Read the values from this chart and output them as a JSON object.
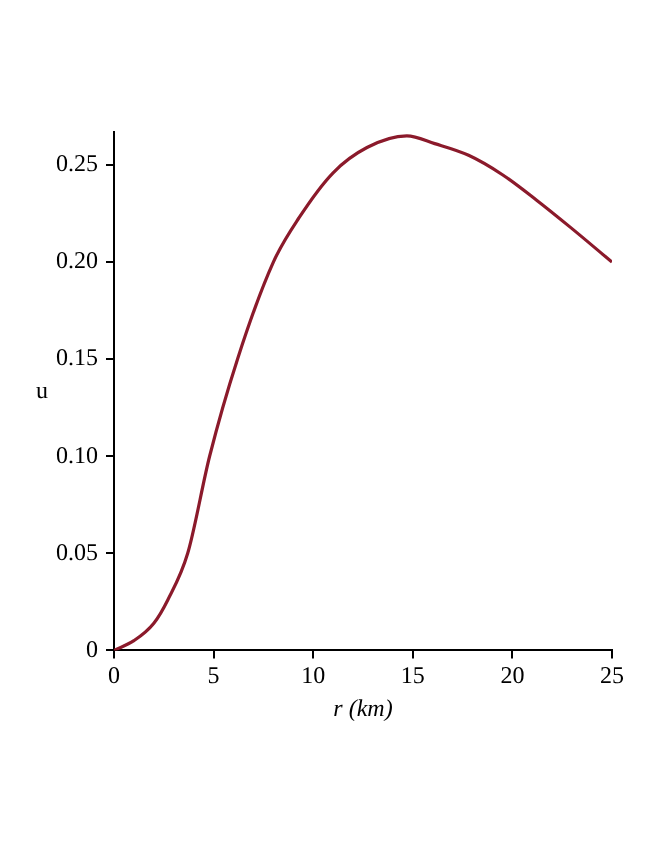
{
  "chart_data": {
    "type": "line",
    "xlabel": "r (km)",
    "ylabel": "u",
    "x": [
      0,
      1,
      2,
      2.7,
      3.7,
      4.8,
      6.2,
      8,
      9.3,
      11,
      12.7,
      14.7,
      16.1,
      17.8,
      19.5,
      21.2,
      22.9,
      25
    ],
    "series": [
      {
        "color": "#8b1a2b",
        "values": [
          0,
          0.005,
          0.014,
          0.026,
          0.05,
          0.1,
          0.15,
          0.2,
          0.223,
          0.246,
          0.259,
          0.265,
          0.261,
          0.255,
          0.245,
          0.232,
          0.218,
          0.2
        ]
      }
    ],
    "xlim": [
      0,
      25
    ],
    "xticks": [
      0,
      5,
      10,
      15,
      20,
      25
    ],
    "ylim": [
      0,
      0.267
    ],
    "yticks": [
      {
        "value": 0,
        "label": "0"
      },
      {
        "value": 0.05,
        "label": "0.05"
      },
      {
        "value": 0.1,
        "label": "0.10"
      },
      {
        "value": 0.15,
        "label": "0.15"
      },
      {
        "value": 0.2,
        "label": "0.20"
      },
      {
        "value": 0.25,
        "label": "0.25"
      }
    ],
    "grid": false,
    "legend": false,
    "marker": "none",
    "line_style": "solid"
  }
}
